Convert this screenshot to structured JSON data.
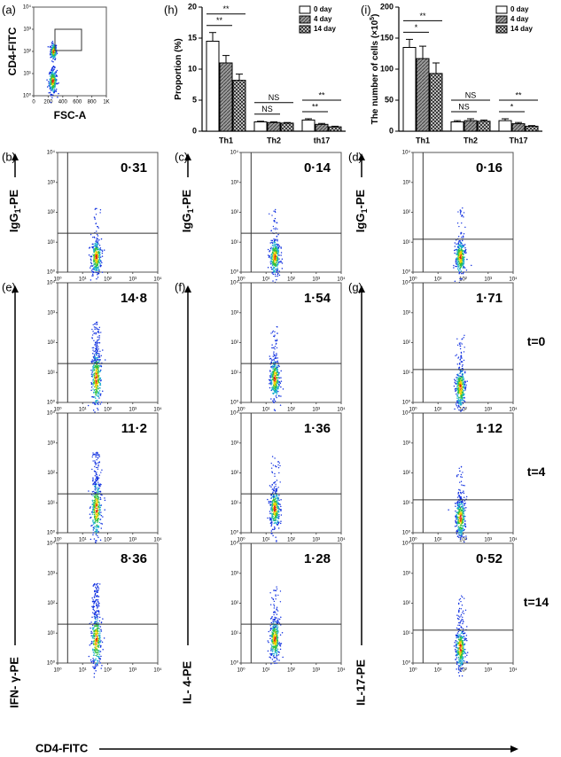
{
  "chart_data": [
    {
      "type": "bar",
      "label": "(h)",
      "ylabel": "Proportion (%)",
      "categories": [
        "Th1",
        "Th2",
        "th17"
      ],
      "series": [
        {
          "name": "0 day",
          "color": "#ffffff",
          "values": [
            14.5,
            1.5,
            1.8
          ],
          "errors": [
            1.4,
            0.1,
            0.2
          ]
        },
        {
          "name": "4 day",
          "color": "#9a9a9a",
          "values": [
            11,
            1.4,
            1.1
          ],
          "errors": [
            1.2,
            0.1,
            0.15
          ]
        },
        {
          "name": "14 day",
          "color": "#3a3a3a",
          "values": [
            8.2,
            1.3,
            0.7
          ],
          "errors": [
            1.0,
            0.1,
            0.1
          ]
        }
      ],
      "ylim": [
        0,
        20
      ],
      "yticks": [
        0,
        5,
        10,
        15,
        20
      ],
      "legend": "top-right",
      "annotations": [
        "**",
        "**",
        "NS",
        "NS",
        "**",
        "**"
      ]
    },
    {
      "type": "bar",
      "label": "(i)",
      "ylabel": "The number of cells (×10",
      "ylabel_sup": "5",
      "ylabel_end": ")",
      "categories": [
        "Th1",
        "Th2",
        "Th17"
      ],
      "series": [
        {
          "name": "0 day",
          "color": "#ffffff",
          "values": [
            135,
            15,
            17
          ],
          "errors": [
            13,
            2,
            3
          ]
        },
        {
          "name": "4 day",
          "color": "#9a9a9a",
          "values": [
            117,
            17,
            12
          ],
          "errors": [
            20,
            3,
            2
          ]
        },
        {
          "name": "14 day",
          "color": "#3a3a3a",
          "values": [
            93,
            16,
            8
          ],
          "errors": [
            17,
            2,
            1
          ]
        }
      ],
      "ylim": [
        0,
        200
      ],
      "yticks": [
        0,
        50,
        100,
        150,
        200
      ],
      "legend": "top-right",
      "annotations": [
        "**",
        "*",
        "NS",
        "NS",
        "**",
        "*"
      ]
    }
  ],
  "panel_a": {
    "label": "(a)",
    "xlabel": "FSC-A",
    "ylabel": "CD4-FITC",
    "xlim": [
      0,
      1000
    ],
    "xticks": [
      0,
      200,
      400,
      600,
      800,
      {
        "value": 1000,
        "label": "1K"
      }
    ]
  },
  "flow": {
    "log_ticks": [
      {
        "value": 1,
        "label": "10⁰"
      },
      {
        "value": 10,
        "label": "10¹"
      },
      {
        "value": 100,
        "label": "10²"
      },
      {
        "value": 1000,
        "label": "10³"
      },
      {
        "value": 10000,
        "label": "10⁴"
      }
    ],
    "xlabel": "CD4-FITC",
    "isotype_ylabel": [
      "IgG",
      "1",
      "-PE"
    ],
    "time_labels": [
      "t=0",
      "t=4",
      "t=14"
    ],
    "columns": [
      {
        "panel_labels": [
          "(b)",
          "(e)"
        ],
        "ylabel": "IFN- γ-PE",
        "percentages": [
          "0·31",
          "14·8",
          "11·2",
          "8·36"
        ]
      },
      {
        "panel_labels": [
          "(c)",
          "(f)"
        ],
        "ylabel": "IL- 4-PE",
        "percentages": [
          "0·14",
          "1·54",
          "1·36",
          "1·28"
        ]
      },
      {
        "panel_labels": [
          "(d)",
          "(g)"
        ],
        "ylabel": "IL-17-PE",
        "percentages": [
          "0·16",
          "1·71",
          "1·12",
          "0·52"
        ]
      }
    ]
  }
}
